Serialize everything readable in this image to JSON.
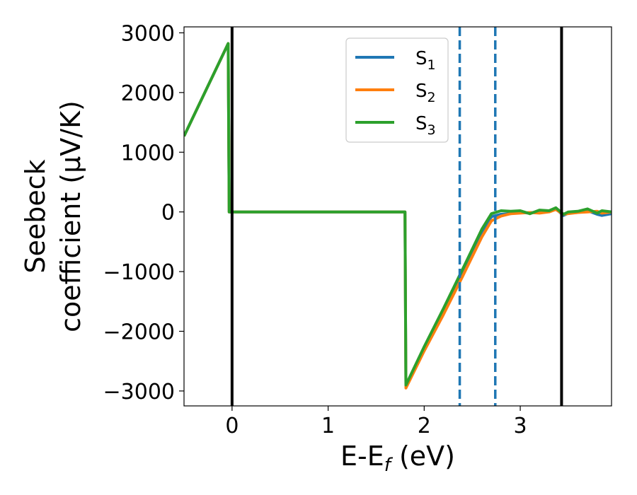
{
  "chart_data": {
    "type": "line",
    "xlabel": "E-E",
    "xlabel_sub": "f",
    "xlabel_unit": " (eV)",
    "ylabel_line1": "Seebeck",
    "ylabel_line2": "coefficient  (μV/K)",
    "xlim": [
      -0.5,
      3.95
    ],
    "ylim": [
      -3250,
      3100
    ],
    "xticks": [
      0,
      1,
      2,
      3
    ],
    "xtick_labels": [
      "0",
      "1",
      "2",
      "3"
    ],
    "yticks": [
      3000,
      2000,
      1000,
      0,
      -1000,
      -2000,
      -3000
    ],
    "ytick_labels": [
      "3000",
      "2000",
      "1000",
      "0",
      "−1000",
      "−2000",
      "−3000"
    ],
    "legend_placement": "upper-center",
    "grid": false,
    "vertical_lines": [
      {
        "x": 0.0,
        "style": "solid",
        "color": "#000000"
      },
      {
        "x": 3.43,
        "style": "solid",
        "color": "#000000"
      },
      {
        "x": 2.37,
        "style": "dashed",
        "color": "#1f77b4"
      },
      {
        "x": 2.74,
        "style": "dashed",
        "color": "#1f77b4"
      }
    ],
    "series": [
      {
        "name": "S",
        "sub": "1",
        "color": "#1f77b4",
        "x": [
          -0.5,
          -0.04,
          -0.03,
          1.8,
          1.8,
          1.81,
          2.0,
          2.2,
          2.4,
          2.6,
          2.7,
          2.8,
          2.9,
          3.0,
          3.1,
          3.2,
          3.3,
          3.37,
          3.45,
          3.5,
          3.6,
          3.7,
          3.8,
          3.85,
          3.95
        ],
        "y": [
          1270,
          2820,
          0,
          0,
          0,
          -2930,
          -2280,
          -1650,
          -1000,
          -330,
          -80,
          -40,
          -30,
          -10,
          -20,
          10,
          10,
          50,
          -60,
          -20,
          -10,
          20,
          -40,
          -60,
          -30
        ]
      },
      {
        "name": "S",
        "sub": "2",
        "color": "#ff7f0e",
        "x": [
          -0.5,
          -0.04,
          -0.03,
          1.8,
          1.8,
          1.81,
          2.0,
          2.2,
          2.4,
          2.6,
          2.7,
          2.8,
          2.9,
          3.0,
          3.1,
          3.2,
          3.3,
          3.37,
          3.45,
          3.5,
          3.6,
          3.7,
          3.8,
          3.85,
          3.95
        ],
        "y": [
          1270,
          2820,
          0,
          0,
          0,
          -2950,
          -2330,
          -1720,
          -1080,
          -420,
          -150,
          -70,
          -30,
          -20,
          -10,
          -20,
          0,
          40,
          -40,
          -30,
          -10,
          0,
          10,
          -20,
          0
        ]
      },
      {
        "name": "S",
        "sub": "3",
        "color": "#2ca02c",
        "x": [
          -0.5,
          -0.04,
          -0.03,
          1.8,
          1.8,
          1.81,
          2.0,
          2.2,
          2.4,
          2.6,
          2.7,
          2.8,
          2.9,
          3.0,
          3.1,
          3.2,
          3.3,
          3.37,
          3.45,
          3.5,
          3.6,
          3.7,
          3.8,
          3.85,
          3.95
        ],
        "y": [
          1270,
          2820,
          0,
          0,
          0,
          -2900,
          -2260,
          -1620,
          -960,
          -290,
          -30,
          20,
          10,
          20,
          -30,
          30,
          20,
          70,
          -40,
          0,
          10,
          50,
          -20,
          20,
          0
        ]
      }
    ]
  }
}
